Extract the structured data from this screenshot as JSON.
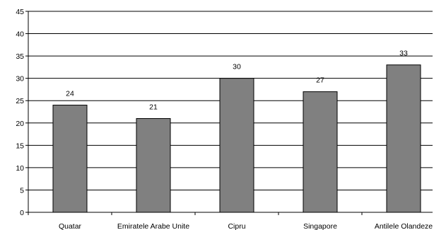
{
  "chart_data": {
    "type": "bar",
    "categories": [
      "Quatar",
      "Emiratele Arabe Unite",
      "Cipru",
      "Singapore",
      "Antilele Olandeze"
    ],
    "values": [
      24,
      21,
      30,
      27,
      33
    ],
    "data_labels": [
      "24",
      "21",
      "30",
      "27",
      "33"
    ],
    "title": "",
    "xlabel": "",
    "ylabel": "",
    "ylim": [
      0,
      45
    ],
    "yticks": [
      0,
      5,
      10,
      15,
      20,
      25,
      30,
      35,
      40,
      45
    ],
    "grid": true,
    "legend": "none",
    "colors": {
      "bar": "#808080",
      "bar_border": "#000000",
      "grid": "#000000"
    }
  }
}
